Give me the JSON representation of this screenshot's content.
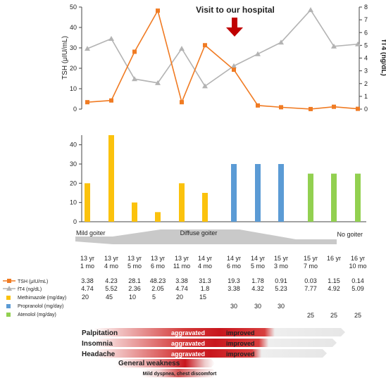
{
  "chart_data": [
    {
      "type": "line",
      "title": "",
      "annotation": "Visit to our hospital",
      "series": [
        {
          "name": "TSH (μIU/mL)",
          "axis": "left",
          "color": "#f07b23",
          "marker": "square",
          "values": [
            3.38,
            4.23,
            28.1,
            48.23,
            3.38,
            31.3,
            19.3,
            1.78,
            0.91,
            0.03,
            1.15,
            0.14
          ]
        },
        {
          "name": "fT4 (ng/dL)",
          "axis": "right",
          "color": "#b3b3b3",
          "marker": "triangle",
          "values": [
            4.74,
            5.52,
            2.36,
            2.05,
            4.74,
            1.8,
            3.38,
            4.32,
            5.23,
            7.77,
            4.92,
            5.09
          ]
        }
      ],
      "left_axis": {
        "label": "TSH (μIU/mL)",
        "ylim": [
          0,
          50
        ],
        "ticks": [
          "0",
          "10",
          "20",
          "30",
          "40",
          "50"
        ]
      },
      "right_axis": {
        "label": "fT4 (ng/dL)",
        "ylim": [
          0,
          8
        ],
        "ticks": [
          "0",
          "1",
          "2",
          "3",
          "4",
          "5",
          "6",
          "7",
          "8"
        ]
      }
    },
    {
      "type": "bar",
      "ylim": [
        0,
        45
      ],
      "ticks": [
        "0",
        "10",
        "20",
        "30",
        "40"
      ],
      "series": [
        {
          "name": "Methimazole (mg/day)",
          "color": "#fbc20d",
          "values": [
            20,
            45,
            10,
            5,
            20,
            15,
            null,
            null,
            null,
            null,
            null,
            null
          ]
        },
        {
          "name": "Propranolol (mg/day)",
          "color": "#5b9bd5",
          "values": [
            null,
            null,
            null,
            null,
            null,
            null,
            30,
            30,
            30,
            null,
            null,
            null
          ]
        },
        {
          "name": "Atenolol (mg/day)",
          "color": "#92d050",
          "values": [
            null,
            null,
            null,
            null,
            null,
            null,
            null,
            null,
            null,
            25,
            25,
            25
          ]
        }
      ]
    }
  ],
  "goiter_labels": [
    "Mild goiter",
    "Diffuse goiter",
    "No goiter"
  ],
  "columns": [
    [
      "13 yr",
      "1 mo"
    ],
    [
      "13 yr",
      "4 mo"
    ],
    [
      "13 yr",
      "5 mo"
    ],
    [
      "13 yr",
      "6 mo"
    ],
    [
      "13 yr",
      "11 mo"
    ],
    [
      "14 yr",
      "4 mo"
    ],
    [
      "14 yr",
      "6 mo"
    ],
    [
      "14 yr",
      "5 mo"
    ],
    [
      "15 yr",
      "3 mo"
    ],
    [
      "15 yr",
      "7 mo"
    ],
    [
      "16 yr",
      ""
    ],
    [
      "16 yr",
      "10 mo"
    ]
  ],
  "table_rows": [
    {
      "label": "TSH (μIU/mL)",
      "values": [
        "3.38",
        "4.23",
        "28.1",
        "48.23",
        "3.38",
        "31.3",
        "19.3",
        "1.78",
        "0.91",
        "0.03",
        "1.15",
        "0.14"
      ]
    },
    {
      "label": "fT4 (ng/dL)",
      "values": [
        "4.74",
        "5.52",
        "2.36",
        "2.05",
        "4.74",
        "1.8",
        "3.38",
        "4.32",
        "5.23",
        "7.77",
        "4.92",
        "5.09"
      ]
    },
    {
      "label": "Methimazole (mg/day)",
      "values": [
        "20",
        "45",
        "10",
        "5",
        "20",
        "15",
        "",
        "",
        "",
        "",
        "",
        ""
      ]
    },
    {
      "label": "Propranolol (mg/day)",
      "values": [
        "",
        "",
        "",
        "",
        "",
        "",
        "30",
        "30",
        "30",
        "",
        "",
        ""
      ]
    },
    {
      "label": "Atenolol (mg/day)",
      "values": [
        "",
        "",
        "",
        "",
        "",
        "",
        "",
        "",
        "",
        "25",
        "25",
        "25"
      ]
    }
  ],
  "symptoms": [
    {
      "name": "Palpitation",
      "aggravated": "aggravated",
      "improved": "improved"
    },
    {
      "name": "Insomnia",
      "aggravated": "aggravated",
      "improved": "improved"
    },
    {
      "name": "Headache",
      "aggravated": "aggravated",
      "improved": "improved"
    },
    {
      "name": "General weakness"
    },
    {
      "name": "Mild dyspnea, chest discomfort"
    }
  ],
  "colors": {
    "tsh": "#f07b23",
    "ft4": "#b3b3b3",
    "arrow": "#c00000",
    "methimazole": "#fbc20d",
    "propranolol": "#5b9bd5",
    "atenolol": "#92d050",
    "symptom_red": "#c8161d"
  }
}
